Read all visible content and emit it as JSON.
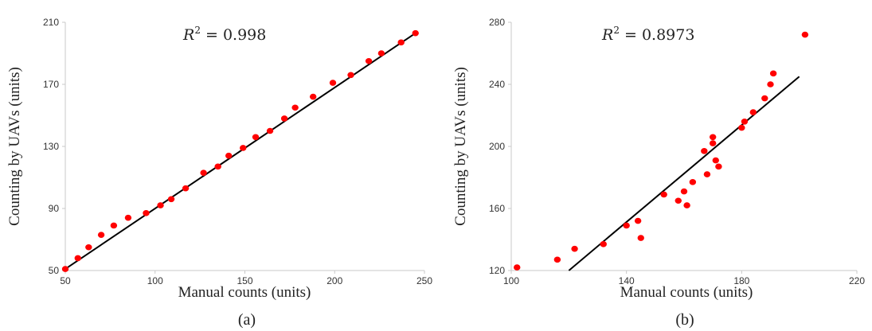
{
  "chart_data": [
    {
      "type": "scatter",
      "panel_label": "(a)",
      "xlabel": "Manual counts (units)",
      "ylabel": "Counting by UAVs (units)",
      "xlim": [
        50,
        250
      ],
      "ylim": [
        50,
        210
      ],
      "xticks": [
        "50",
        "100",
        "150",
        "200",
        "250"
      ],
      "yticks": [
        "50",
        "90",
        "130",
        "170",
        "210"
      ],
      "annotation": {
        "var": "R",
        "sup": "2",
        "rest": " = 0.998"
      },
      "marker_color": "#ff0000",
      "line_color": "#000000",
      "grid": false,
      "trendline": {
        "x": [
          50,
          245
        ],
        "y": [
          51,
          203
        ]
      },
      "points": [
        {
          "x": 50,
          "y": 51
        },
        {
          "x": 57,
          "y": 58
        },
        {
          "x": 63,
          "y": 65
        },
        {
          "x": 70,
          "y": 73
        },
        {
          "x": 77,
          "y": 79
        },
        {
          "x": 85,
          "y": 84
        },
        {
          "x": 95,
          "y": 87
        },
        {
          "x": 103,
          "y": 92
        },
        {
          "x": 109,
          "y": 96
        },
        {
          "x": 117,
          "y": 103
        },
        {
          "x": 127,
          "y": 113
        },
        {
          "x": 135,
          "y": 117
        },
        {
          "x": 141,
          "y": 124
        },
        {
          "x": 149,
          "y": 129
        },
        {
          "x": 156,
          "y": 136
        },
        {
          "x": 164,
          "y": 140
        },
        {
          "x": 172,
          "y": 148
        },
        {
          "x": 178,
          "y": 155
        },
        {
          "x": 188,
          "y": 162
        },
        {
          "x": 199,
          "y": 171
        },
        {
          "x": 209,
          "y": 176
        },
        {
          "x": 219,
          "y": 185
        },
        {
          "x": 226,
          "y": 190
        },
        {
          "x": 237,
          "y": 197
        },
        {
          "x": 245,
          "y": 203
        }
      ]
    },
    {
      "type": "scatter",
      "panel_label": "(b)",
      "xlabel": "Manual counts (units)",
      "ylabel": "Counting by UAVs (units)",
      "xlim": [
        100,
        220
      ],
      "ylim": [
        120,
        280
      ],
      "xticks": [
        "100",
        "140",
        "180",
        "220"
      ],
      "yticks": [
        "120",
        "160",
        "200",
        "240",
        "280"
      ],
      "annotation": {
        "var": "R",
        "sup": "2",
        "rest": " = 0.8973"
      },
      "marker_color": "#ff0000",
      "line_color": "#000000",
      "grid": false,
      "trendline": {
        "x": [
          120,
          200
        ],
        "y": [
          120,
          245
        ]
      },
      "points": [
        {
          "x": 102,
          "y": 122
        },
        {
          "x": 116,
          "y": 127
        },
        {
          "x": 122,
          "y": 134
        },
        {
          "x": 132,
          "y": 137
        },
        {
          "x": 140,
          "y": 149
        },
        {
          "x": 144,
          "y": 152
        },
        {
          "x": 145,
          "y": 141
        },
        {
          "x": 153,
          "y": 169
        },
        {
          "x": 158,
          "y": 165
        },
        {
          "x": 160,
          "y": 171
        },
        {
          "x": 161,
          "y": 162
        },
        {
          "x": 163,
          "y": 177
        },
        {
          "x": 167,
          "y": 197
        },
        {
          "x": 168,
          "y": 182
        },
        {
          "x": 170,
          "y": 202
        },
        {
          "x": 170,
          "y": 206
        },
        {
          "x": 171,
          "y": 191
        },
        {
          "x": 172,
          "y": 187
        },
        {
          "x": 180,
          "y": 212
        },
        {
          "x": 181,
          "y": 216
        },
        {
          "x": 184,
          "y": 222
        },
        {
          "x": 188,
          "y": 231
        },
        {
          "x": 190,
          "y": 240
        },
        {
          "x": 191,
          "y": 247
        },
        {
          "x": 202,
          "y": 272
        }
      ]
    }
  ]
}
